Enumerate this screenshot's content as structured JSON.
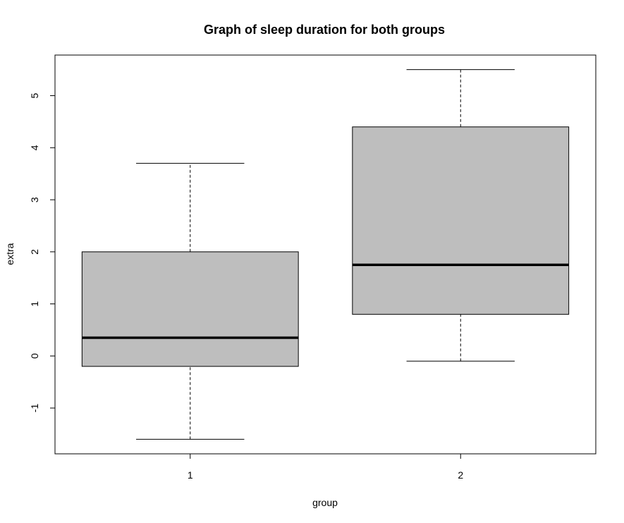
{
  "chart_data": {
    "type": "boxplot",
    "title": "Graph of sleep duration for both groups",
    "xlabel": "group",
    "ylabel": "extra",
    "categories": [
      "1",
      "2"
    ],
    "boxes": [
      {
        "category": "1",
        "whisker_low": -1.6,
        "q1": -0.2,
        "median": 0.35,
        "q3": 2.0,
        "whisker_high": 3.7
      },
      {
        "category": "2",
        "whisker_low": -0.1,
        "q1": 0.8,
        "median": 1.75,
        "q3": 4.4,
        "whisker_high": 5.5
      }
    ],
    "yticks": [
      -1,
      0,
      1,
      2,
      3,
      4,
      5
    ],
    "ylim": [
      -1.88,
      5.78
    ],
    "box_fill": "#bebebe",
    "grid": false
  }
}
